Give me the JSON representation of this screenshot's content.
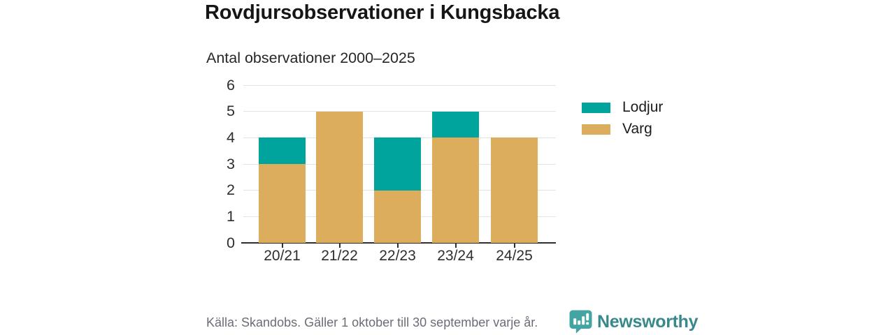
{
  "header": {
    "title": "Rovdjursobservationer i Kungsbacka",
    "subtitle": "Antal observationer 2000–2025"
  },
  "chart_data": {
    "type": "bar",
    "stacked": true,
    "categories": [
      "20/21",
      "21/22",
      "22/23",
      "23/24",
      "24/25"
    ],
    "series": [
      {
        "name": "Varg",
        "color": "#dbad5c",
        "values": [
          3,
          5,
          2,
          4,
          4
        ]
      },
      {
        "name": "Lodjur",
        "color": "#00a49c",
        "values": [
          1,
          0,
          2,
          1,
          0
        ]
      }
    ],
    "totals": [
      4,
      5,
      4,
      5,
      4
    ],
    "title": "Rovdjursobservationer i Kungsbacka",
    "subtitle": "Antal observationer 2000–2025",
    "xlabel": "",
    "ylabel": "",
    "ylim": [
      0,
      6
    ],
    "yticks": [
      0,
      1,
      2,
      3,
      4,
      5,
      6
    ],
    "grid": true,
    "legend_position": "right"
  },
  "legend": {
    "items": [
      {
        "label": "Lodjur",
        "color": "#00a49c"
      },
      {
        "label": "Varg",
        "color": "#dbad5c"
      }
    ]
  },
  "footer": {
    "source_text": "Källa: Skandobs. Gäller 1 oktober till 30 september varje år.",
    "brand": "Newsworthy"
  },
  "colors": {
    "lodjur": "#00a49c",
    "varg": "#dbad5c",
    "gridline": "#e3e3e3",
    "axis": "#2e2e2e",
    "brand_bubble": "#43a5a2",
    "brand_text": "#38898c",
    "source_text": "#6c6c77"
  }
}
